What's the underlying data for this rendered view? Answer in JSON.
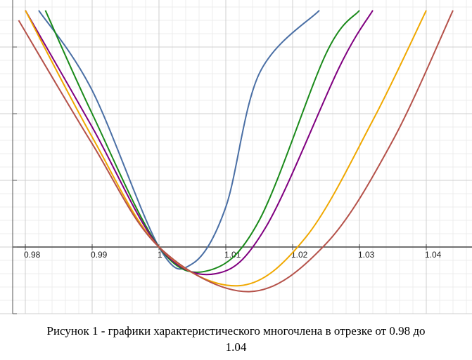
{
  "caption": {
    "line1": "Рисунок 1 - графики характеристического многочлена в отрезке от 0.98 до",
    "line2": "1.04"
  },
  "chart_data": {
    "type": "line",
    "title": "",
    "xlabel": "",
    "ylabel": "",
    "xlim": [
      0.979,
      1.044
    ],
    "x_ticks": [
      "0.98",
      "0.99",
      "1",
      "1.01",
      "1.02",
      "1.03",
      "1.04"
    ],
    "y_tick_labels": false,
    "grid": true,
    "minor_grid": true,
    "legend": "none",
    "series": [
      {
        "color": "#4a6fa5",
        "min_x": 1.005,
        "min_depth": 0.25,
        "points": [
          [
            0.982,
            3.55
          ],
          [
            0.99,
            2.35
          ],
          [
            1.0,
            0.0
          ],
          [
            1.005,
            -0.25
          ],
          [
            1.01,
            0.6
          ],
          [
            1.015,
            2.6
          ],
          [
            1.024,
            3.55
          ]
        ]
      },
      {
        "color": "#1a8a1a",
        "min_x": 1.0075,
        "min_depth": 0.35,
        "points": [
          [
            0.983,
            3.55
          ],
          [
            0.99,
            2.0
          ],
          [
            1.0,
            0.0
          ],
          [
            1.0075,
            -0.35
          ],
          [
            1.015,
            0.4
          ],
          [
            1.025,
            2.9
          ],
          [
            1.03,
            3.55
          ]
        ]
      },
      {
        "color": "#800080",
        "min_x": 1.0085,
        "min_depth": 0.4,
        "points": [
          [
            0.98,
            3.55
          ],
          [
            0.99,
            1.8
          ],
          [
            1.0,
            0.0
          ],
          [
            1.0085,
            -0.4
          ],
          [
            1.016,
            0.3
          ],
          [
            1.027,
            2.7
          ],
          [
            1.032,
            3.55
          ]
        ]
      },
      {
        "color": "#f0a800",
        "min_x": 1.012,
        "min_depth": 0.58,
        "points": [
          [
            0.98,
            3.55
          ],
          [
            0.99,
            1.65
          ],
          [
            1.0,
            0.0
          ],
          [
            1.012,
            -0.58
          ],
          [
            1.022,
            0.15
          ],
          [
            1.032,
            1.9
          ],
          [
            1.04,
            3.55
          ]
        ]
      },
      {
        "color": "#b5524a",
        "min_x": 1.0135,
        "min_depth": 0.67,
        "points": [
          [
            0.979,
            3.4
          ],
          [
            0.99,
            1.55
          ],
          [
            1.0,
            0.0
          ],
          [
            1.0135,
            -0.67
          ],
          [
            1.025,
            0.05
          ],
          [
            1.035,
            1.6
          ],
          [
            1.044,
            3.55
          ]
        ]
      }
    ]
  }
}
